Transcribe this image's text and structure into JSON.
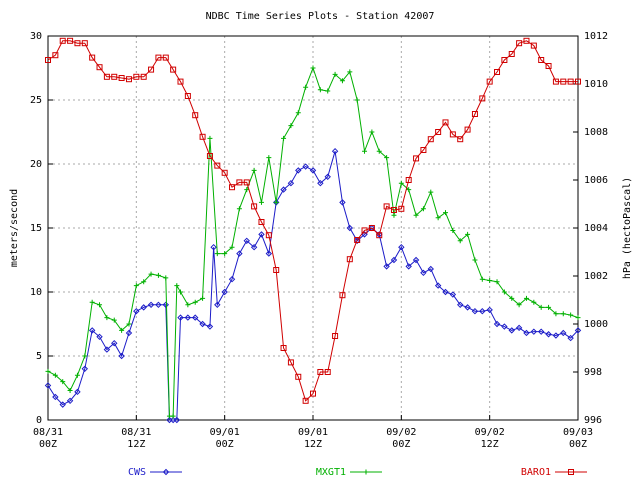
{
  "chart_data": {
    "type": "line",
    "title": "NDBC Time Series Plots - Station 42007",
    "ylabel": "meters/second",
    "y2label": "hPa (hectoPascal)",
    "xlim": [
      0,
      72
    ],
    "xticks": [
      {
        "value": 0,
        "label": [
          "08/31",
          "00Z"
        ]
      },
      {
        "value": 12,
        "label": [
          "08/31",
          "12Z"
        ]
      },
      {
        "value": 24,
        "label": [
          "09/01",
          "00Z"
        ]
      },
      {
        "value": 36,
        "label": [
          "09/01",
          "12Z"
        ]
      },
      {
        "value": 48,
        "label": [
          "09/02",
          "00Z"
        ]
      },
      {
        "value": 60,
        "label": [
          "09/02",
          "12Z"
        ]
      },
      {
        "value": 72,
        "label": [
          "09/03",
          "00Z"
        ]
      }
    ],
    "ylim": [
      0,
      30
    ],
    "yticks": [
      0,
      5,
      10,
      15,
      20,
      25,
      30
    ],
    "y2lim": [
      996,
      1012
    ],
    "y2ticks": [
      996,
      998,
      1000,
      1002,
      1004,
      1006,
      1008,
      1010,
      1012
    ],
    "grid": true,
    "series": [
      {
        "name": "CWS",
        "color": "#1c1cc8",
        "marker": "diamond",
        "x": [
          0,
          1,
          2,
          3,
          4,
          5,
          6,
          7,
          8,
          9,
          10,
          11,
          12,
          13,
          14,
          15,
          16,
          16.5,
          17,
          17.5,
          18,
          19,
          20,
          21,
          22,
          22.5,
          23,
          24,
          25,
          26,
          27,
          28,
          29,
          30,
          31,
          32,
          33,
          34,
          35,
          36,
          37,
          38,
          39,
          40,
          41,
          42,
          43,
          44,
          45,
          46,
          47,
          48,
          49,
          50,
          51,
          52,
          53,
          54,
          55,
          56,
          57,
          58,
          59,
          60,
          61,
          62,
          63,
          64,
          65,
          66,
          67,
          68,
          69,
          70,
          71,
          72
        ],
        "values": [
          2.7,
          1.8,
          1.2,
          1.5,
          2.2,
          4,
          7,
          6.5,
          5.5,
          6,
          5,
          6.8,
          8.5,
          8.8,
          9,
          9,
          9,
          0,
          0,
          0,
          8,
          8,
          8,
          7.5,
          7.3,
          13.5,
          9,
          10,
          11,
          13,
          14,
          13.5,
          14.5,
          13,
          17,
          18,
          18.5,
          19.5,
          19.8,
          19.5,
          18.5,
          19,
          21,
          17,
          15,
          14,
          14.5,
          15,
          14.5,
          12,
          12.5,
          13.5,
          12,
          12.5,
          11.5,
          11.8,
          10.5,
          10,
          9.8,
          9,
          8.8,
          8.5,
          8.5,
          8.6,
          7.5,
          7.3,
          7,
          7.2,
          6.8,
          6.9,
          6.9,
          6.7,
          6.6,
          6.8,
          6.4,
          7
        ]
      },
      {
        "name": "MXGT1",
        "color": "#00b000",
        "marker": "plus",
        "x": [
          0,
          1,
          2,
          3,
          4,
          5,
          6,
          7,
          8,
          9,
          10,
          11,
          12,
          13,
          14,
          15,
          16,
          16.5,
          17,
          17.5,
          18,
          19,
          20,
          21,
          22,
          23,
          24,
          25,
          26,
          27,
          28,
          29,
          30,
          31,
          32,
          33,
          34,
          35,
          36,
          37,
          38,
          39,
          40,
          41,
          42,
          43,
          44,
          45,
          46,
          47,
          48,
          49,
          50,
          51,
          52,
          53,
          54,
          55,
          56,
          57,
          58,
          59,
          60,
          61,
          62,
          63,
          64,
          65,
          66,
          67,
          68,
          69,
          70,
          71,
          72
        ],
        "values": [
          3.8,
          3.5,
          3,
          2.3,
          3.5,
          5,
          9.2,
          9,
          8,
          7.8,
          7,
          7.5,
          10.5,
          10.8,
          11.4,
          11.3,
          11.1,
          0.3,
          0.3,
          10.5,
          10,
          9,
          9.2,
          9.5,
          22,
          13,
          13,
          13.5,
          16.5,
          18,
          19.5,
          17,
          20.5,
          17,
          22,
          23,
          24,
          26,
          27.5,
          25.8,
          25.7,
          27,
          26.5,
          27.2,
          25,
          21,
          22.5,
          21,
          20.5,
          16,
          18.5,
          18,
          16,
          16.5,
          17.8,
          15.8,
          16.2,
          14.8,
          14,
          14.5,
          12.5,
          11,
          10.9,
          10.8,
          10,
          9.5,
          9,
          9.5,
          9.2,
          8.8,
          8.8,
          8.3,
          8.3,
          8.2,
          8
        ]
      },
      {
        "name": "BARO1",
        "color": "#d00000",
        "marker": "square",
        "axis": "y2",
        "x": [
          0,
          1,
          2,
          3,
          4,
          5,
          6,
          7,
          8,
          9,
          10,
          11,
          12,
          13,
          14,
          15,
          16,
          17,
          18,
          19,
          20,
          21,
          22,
          23,
          24,
          25,
          26,
          27,
          28,
          29,
          30,
          31,
          32,
          33,
          34,
          35,
          36,
          37,
          38,
          39,
          40,
          41,
          42,
          43,
          44,
          45,
          46,
          47,
          48,
          49,
          50,
          51,
          52,
          53,
          54,
          55,
          56,
          57,
          58,
          59,
          60,
          61,
          62,
          63,
          64,
          65,
          66,
          67,
          68,
          69,
          70,
          71,
          72
        ],
        "values": [
          1011.0,
          1011.2,
          1011.8,
          1011.8,
          1011.7,
          1011.7,
          1011.1,
          1010.7,
          1010.3,
          1010.3,
          1010.25,
          1010.2,
          1010.3,
          1010.3,
          1010.6,
          1011.1,
          1011.1,
          1010.6,
          1010.1,
          1009.5,
          1008.7,
          1007.8,
          1007.0,
          1006.6,
          1006.3,
          1005.7,
          1005.9,
          1005.9,
          1004.9,
          1004.25,
          1003.7,
          1002.25,
          999.0,
          998.4,
          997.8,
          996.8,
          997.1,
          998.0,
          998.0,
          999.5,
          1001.2,
          1002.7,
          1003.5,
          1003.9,
          1004.0,
          1003.7,
          1004.9,
          1004.75,
          1004.8,
          1006.0,
          1006.9,
          1007.25,
          1007.7,
          1008.0,
          1008.4,
          1007.9,
          1007.7,
          1008.1,
          1008.75,
          1009.4,
          1010.1,
          1010.5,
          1011.0,
          1011.25,
          1011.7,
          1011.8,
          1011.6,
          1011.0,
          1010.75,
          1010.1,
          1010.1,
          1010.1,
          1010.1
        ]
      }
    ]
  }
}
